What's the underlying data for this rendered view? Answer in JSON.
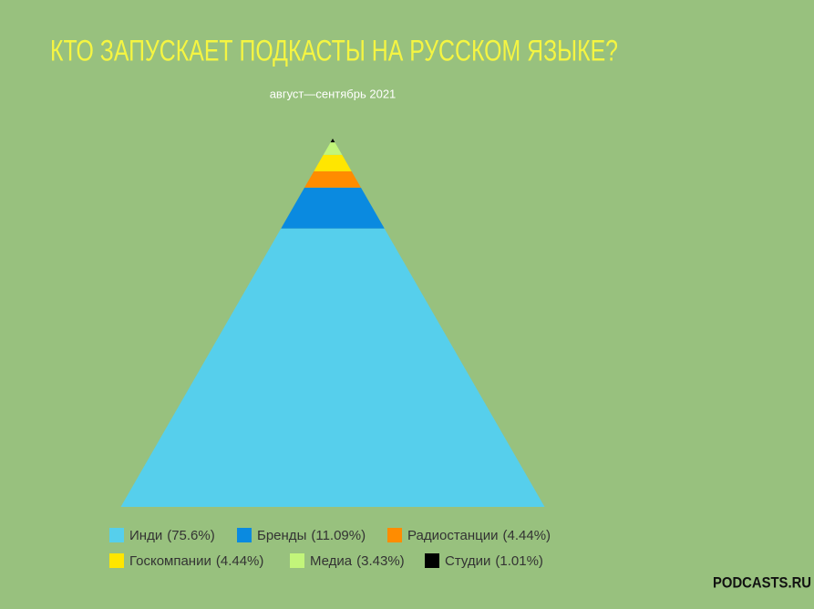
{
  "chart_data": {
    "type": "pyramid",
    "title": "КТО ЗАПУСКАЕТ ПОДКАСТЫ НА РУССКОМ ЯЗЫКЕ?",
    "subtitle": "август—сентябрь 2021",
    "categories": [
      "Инди",
      "Бренды",
      "Радиостанции",
      "Госкомпании",
      "Медиа",
      "Студии"
    ],
    "values": [
      75.6,
      11.09,
      4.44,
      4.44,
      3.43,
      1.01
    ],
    "value_labels": [
      "(75.6%)",
      "(11.09%)",
      "(4.44%)",
      "(4.44%)",
      "(3.43%)",
      "(1.01%)"
    ],
    "colors": [
      "#56cfec",
      "#0a8ae0",
      "#ff8c00",
      "#ffe600",
      "#c2f57a",
      "#000000"
    ],
    "logo": "PODCASTS.RU"
  }
}
